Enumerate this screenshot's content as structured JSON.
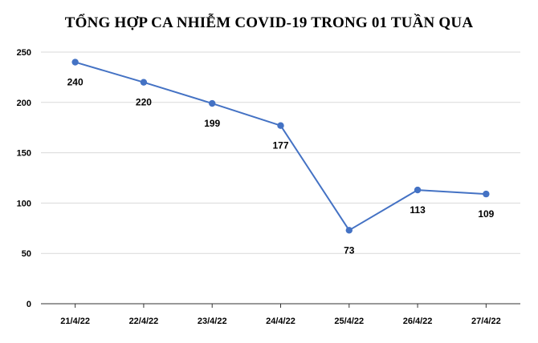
{
  "chart_data": {
    "type": "line",
    "title": "TỔNG HỢP CA NHIỄM COVID-19 TRONG 01 TUẦN QUA",
    "xlabel": "",
    "ylabel": "",
    "categories": [
      "21/4/22",
      "22/4/22",
      "23/4/22",
      "24/4/22",
      "25/4/22",
      "26/4/22",
      "27/4/22"
    ],
    "series": [
      {
        "values": [
          240,
          220,
          199,
          177,
          73,
          113,
          109
        ]
      }
    ],
    "ylim": [
      0,
      250
    ],
    "yticks": [
      0,
      50,
      100,
      150,
      200,
      250
    ],
    "grid": true,
    "data_labels": "below",
    "colors": {
      "line": "#4472c4",
      "grid": "#d9d9d9"
    }
  }
}
